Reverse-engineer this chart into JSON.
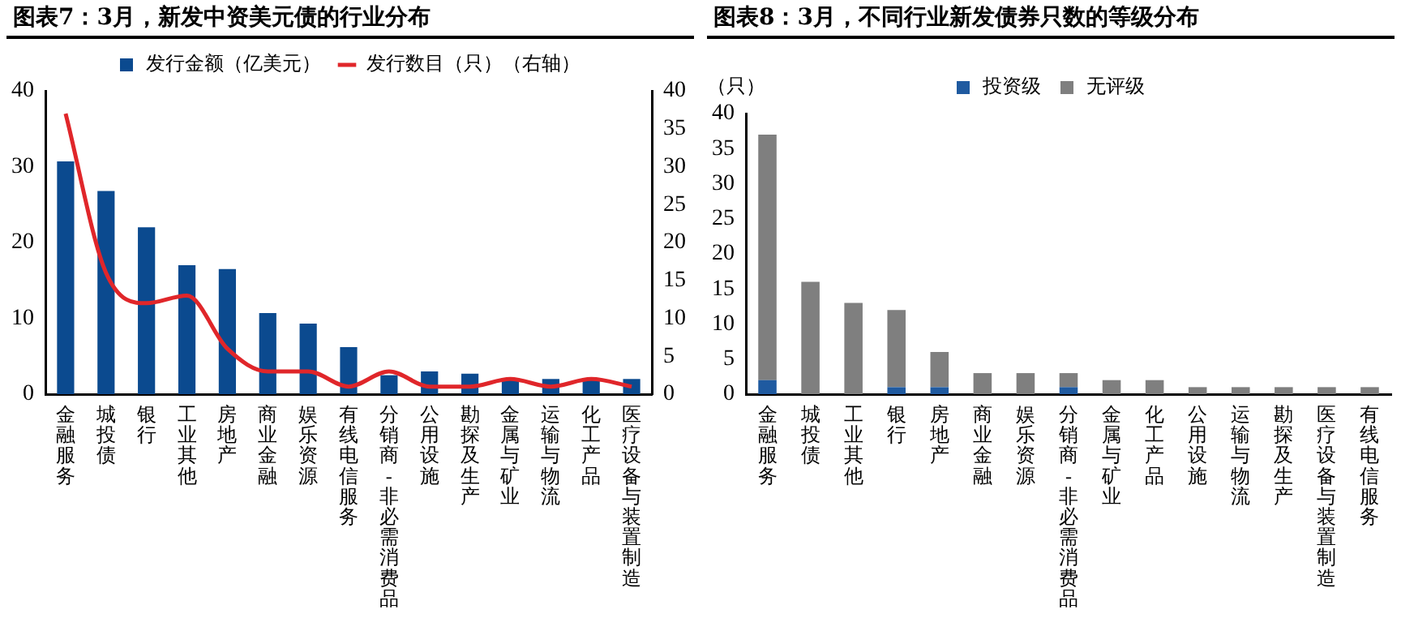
{
  "chart_data": [
    {
      "type": "bar",
      "title": "图表7：3月，新发中资美元债的行业分布",
      "categories": [
        "金融服务",
        "城投债",
        "银行",
        "工业其他",
        "房地产",
        "商业金融",
        "娱乐资源",
        "有线电信服务",
        "分销商-非必需消费品",
        "公用设施",
        "勘探及生产",
        "金属与矿业",
        "运输与物流",
        "化工产品",
        "医疗设备与装置制造"
      ],
      "series": [
        {
          "name": "发行金额（亿美元）",
          "color": "#0b4a8f",
          "values": [
            30.7,
            26.8,
            22,
            17,
            16.5,
            10.7,
            9.3,
            6.2,
            2.5,
            3,
            2.7,
            2,
            2,
            2,
            2
          ]
        },
        {
          "name": "发行数目（只）（右轴）",
          "type": "line",
          "axis": "y2",
          "color": "#e0262a",
          "values": [
            37,
            16,
            12,
            13,
            6,
            3,
            3,
            1,
            3,
            1,
            1,
            2,
            1,
            2,
            1
          ]
        }
      ],
      "ylim": [
        0,
        40
      ],
      "yticks": [
        0,
        10,
        20,
        30,
        40
      ],
      "y2lim": [
        0,
        40
      ],
      "y2ticks": [
        0,
        5,
        10,
        15,
        20,
        25,
        30,
        35,
        40
      ],
      "grid": false,
      "legend": "top",
      "marker": "none"
    },
    {
      "type": "bar",
      "title": "图表8：3月，不同行业新发债券只数的等级分布",
      "ylabel": "（只）",
      "categories": [
        "金融服务",
        "城投债",
        "工业其他",
        "银行",
        "房地产",
        "商业金融",
        "娱乐资源",
        "分销商-非必需消费品",
        "金属与矿业",
        "化工产品",
        "公用设施",
        "运输与物流",
        "勘探及生产",
        "医疗设备与装置制造",
        "有线电信服务"
      ],
      "stacked": true,
      "series": [
        {
          "name": "投资级",
          "color": "#1f5aa0",
          "values": [
            2,
            0,
            0,
            1,
            1,
            0,
            0,
            1,
            0,
            0,
            0,
            0,
            0,
            0,
            0
          ]
        },
        {
          "name": "无评级",
          "color": "#7f7f7f",
          "values": [
            35,
            16,
            13,
            11,
            5,
            3,
            3,
            2,
            2,
            2,
            1,
            1,
            1,
            1,
            1
          ]
        }
      ],
      "ylim": [
        0,
        40
      ],
      "yticks": [
        0,
        5,
        10,
        15,
        20,
        25,
        30,
        35,
        40
      ],
      "grid": false,
      "legend": "top"
    }
  ]
}
